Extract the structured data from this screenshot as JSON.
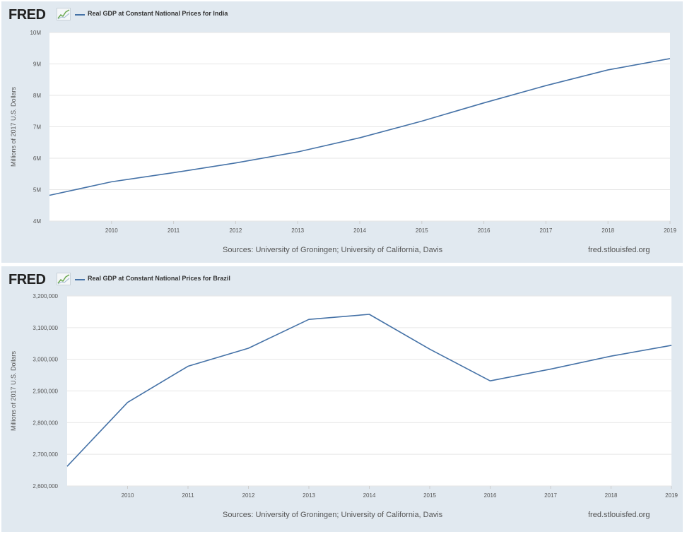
{
  "logo": {
    "text": "FRED"
  },
  "colors": {
    "series": "#4572a7",
    "panel_bg": "#e1e9f0",
    "plot_bg": "#ffffff",
    "grid": "#e6e6e6"
  },
  "charts": [
    {
      "legend_label": "Real GDP at Constant National Prices for India",
      "source_text": "Sources: University of Groningen; University of California, Davis",
      "site_text": "fred.stlouisfed.org"
    },
    {
      "legend_label": "Real GDP at Constant National Prices for Brazil",
      "source_text": "Sources: University of Groningen; University of California, Davis",
      "site_text": "fred.stlouisfed.org"
    }
  ],
  "chart_data": [
    {
      "type": "line",
      "title": "",
      "ylabel": "Millions of 2017 U.S. Dollars",
      "xlim": [
        "2009",
        "2019"
      ],
      "x_ticks": [
        "2010",
        "2011",
        "2012",
        "2013",
        "2014",
        "2015",
        "2016",
        "2017",
        "2018",
        "2019"
      ],
      "ylim": [
        4000000,
        10000000
      ],
      "y_ticks": [
        4000000,
        5000000,
        6000000,
        7000000,
        8000000,
        9000000,
        10000000
      ],
      "y_tick_labels": [
        "4M",
        "5M",
        "6M",
        "7M",
        "8M",
        "9M",
        "10M"
      ],
      "grid": true,
      "series": [
        {
          "name": "Real GDP at Constant National Prices for India",
          "x": [
            "2009",
            "2010",
            "2011",
            "2012",
            "2013",
            "2014",
            "2015",
            "2016",
            "2017",
            "2018",
            "2019"
          ],
          "values": [
            4820000,
            5250000,
            5540000,
            5850000,
            6200000,
            6650000,
            7180000,
            7760000,
            8310000,
            8810000,
            9170000
          ]
        }
      ]
    },
    {
      "type": "line",
      "title": "",
      "ylabel": "Millions of 2017 U.S. Dollars",
      "xlim": [
        "2009",
        "2019"
      ],
      "x_ticks": [
        "2010",
        "2011",
        "2012",
        "2013",
        "2014",
        "2015",
        "2016",
        "2017",
        "2018",
        "2019"
      ],
      "ylim": [
        2600000,
        3200000
      ],
      "y_ticks": [
        2600000,
        2700000,
        2800000,
        2900000,
        3000000,
        3100000,
        3200000
      ],
      "y_tick_labels": [
        "2,600,000",
        "2,700,000",
        "2,800,000",
        "2,900,000",
        "3,000,000",
        "3,100,000",
        "3,200,000"
      ],
      "grid": true,
      "series": [
        {
          "name": "Real GDP at Constant National Prices for Brazil",
          "x": [
            "2009",
            "2010",
            "2011",
            "2012",
            "2013",
            "2014",
            "2015",
            "2016",
            "2017",
            "2018",
            "2019"
          ],
          "values": [
            2662000,
            2864000,
            2978000,
            3035000,
            3126000,
            3142000,
            3032000,
            2932000,
            2969000,
            3010000,
            3044000
          ]
        }
      ]
    }
  ]
}
